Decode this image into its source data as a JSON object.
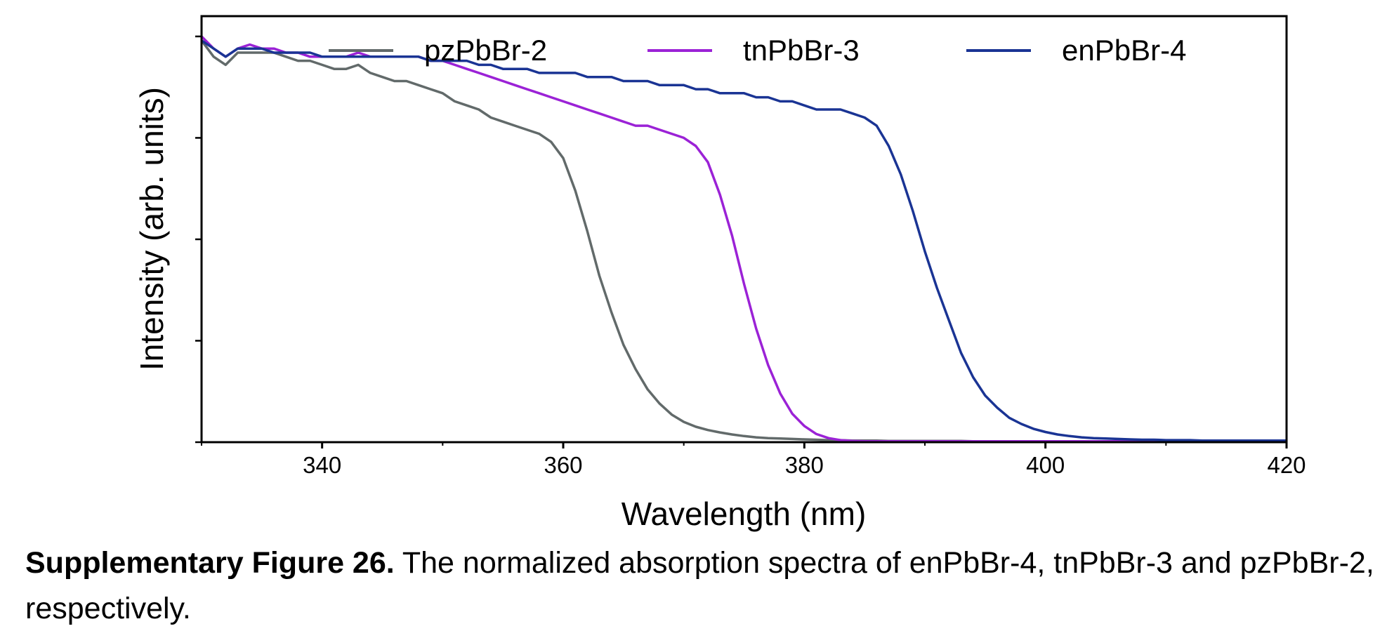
{
  "chart_data": {
    "type": "line",
    "xlabel": "Wavelength (nm)",
    "ylabel": "Intensity (arb. units)",
    "xlim": [
      330,
      420
    ],
    "ylim": [
      0,
      1.05
    ],
    "xticks": [
      340,
      360,
      380,
      400,
      420
    ],
    "y_tick_labels": "none",
    "grid": false,
    "legend_position": "top",
    "x": [
      330,
      331,
      332,
      333,
      334,
      335,
      336,
      337,
      338,
      339,
      340,
      341,
      342,
      343,
      344,
      345,
      346,
      347,
      348,
      349,
      350,
      351,
      352,
      353,
      354,
      355,
      356,
      357,
      358,
      359,
      360,
      361,
      362,
      363,
      364,
      365,
      366,
      367,
      368,
      369,
      370,
      371,
      372,
      373,
      374,
      375,
      376,
      377,
      378,
      379,
      380,
      381,
      382,
      383,
      384,
      385,
      386,
      387,
      388,
      389,
      390,
      391,
      392,
      393,
      394,
      395,
      396,
      397,
      398,
      399,
      400,
      401,
      402,
      403,
      404,
      405,
      406,
      407,
      408,
      409,
      410,
      411,
      412,
      413,
      414,
      415,
      416,
      417,
      418,
      419,
      420
    ],
    "series": [
      {
        "name": "pzPbBr-2",
        "color": "#626a6a",
        "values": [
          0.99,
          0.95,
          0.93,
          0.96,
          0.96,
          0.96,
          0.96,
          0.95,
          0.94,
          0.94,
          0.93,
          0.92,
          0.92,
          0.93,
          0.91,
          0.9,
          0.89,
          0.89,
          0.88,
          0.87,
          0.86,
          0.84,
          0.83,
          0.82,
          0.8,
          0.79,
          0.78,
          0.77,
          0.76,
          0.74,
          0.7,
          0.62,
          0.52,
          0.41,
          0.32,
          0.24,
          0.18,
          0.13,
          0.095,
          0.068,
          0.05,
          0.038,
          0.03,
          0.024,
          0.019,
          0.015,
          0.012,
          0.01,
          0.009,
          0.008,
          0.007,
          0.006,
          0.005,
          0.005,
          0.004,
          0.004,
          0.004,
          0.003,
          0.003,
          0.003,
          0.003,
          0.003,
          0.003,
          0.003,
          0.002,
          0.002,
          0.002,
          0.002,
          0.002,
          0.002,
          0.002,
          0.002,
          0.002,
          0.002,
          0.002,
          0.002,
          0.002,
          0.002,
          0.002,
          0.002,
          0.002,
          0.002,
          0.002,
          0.002,
          0.002,
          0.002,
          0.002,
          0.002,
          0.002,
          0.002,
          0.002
        ]
      },
      {
        "name": "tnPbBr-3",
        "color": "#9b22d6",
        "values": [
          1.0,
          0.97,
          0.95,
          0.97,
          0.98,
          0.97,
          0.97,
          0.96,
          0.96,
          0.95,
          0.95,
          0.95,
          0.95,
          0.96,
          0.95,
          0.95,
          0.95,
          0.95,
          0.95,
          0.94,
          0.94,
          0.93,
          0.92,
          0.91,
          0.9,
          0.89,
          0.88,
          0.87,
          0.86,
          0.85,
          0.84,
          0.83,
          0.82,
          0.81,
          0.8,
          0.79,
          0.78,
          0.78,
          0.77,
          0.76,
          0.75,
          0.73,
          0.69,
          0.61,
          0.51,
          0.39,
          0.28,
          0.19,
          0.12,
          0.07,
          0.04,
          0.02,
          0.01,
          0.005,
          0.003,
          0.002,
          0.002,
          0.002,
          0.002,
          0.002,
          0.002,
          0.002,
          0.002,
          0.002,
          0.002,
          0.002,
          0.002,
          0.002,
          0.002,
          0.002,
          0.002,
          0.002,
          0.002,
          0.002,
          0.002,
          0.002,
          0.002,
          0.002,
          0.002,
          0.002,
          0.002,
          0.002,
          0.002,
          0.002,
          0.002,
          0.002,
          0.002,
          0.002,
          0.002,
          0.002,
          0.002
        ]
      },
      {
        "name": "enPbBr-4",
        "color": "#1a3494",
        "values": [
          0.99,
          0.97,
          0.95,
          0.97,
          0.97,
          0.97,
          0.96,
          0.96,
          0.96,
          0.96,
          0.95,
          0.95,
          0.95,
          0.95,
          0.95,
          0.95,
          0.95,
          0.95,
          0.95,
          0.94,
          0.94,
          0.94,
          0.94,
          0.93,
          0.93,
          0.92,
          0.92,
          0.92,
          0.91,
          0.91,
          0.91,
          0.91,
          0.9,
          0.9,
          0.9,
          0.89,
          0.89,
          0.89,
          0.88,
          0.88,
          0.88,
          0.87,
          0.87,
          0.86,
          0.86,
          0.86,
          0.85,
          0.85,
          0.84,
          0.84,
          0.83,
          0.82,
          0.82,
          0.82,
          0.81,
          0.8,
          0.78,
          0.73,
          0.66,
          0.57,
          0.47,
          0.38,
          0.3,
          0.22,
          0.16,
          0.115,
          0.085,
          0.06,
          0.045,
          0.033,
          0.025,
          0.019,
          0.015,
          0.012,
          0.01,
          0.009,
          0.008,
          0.007,
          0.006,
          0.006,
          0.005,
          0.005,
          0.005,
          0.004,
          0.004,
          0.004,
          0.004,
          0.004,
          0.004,
          0.004,
          0.004
        ]
      }
    ]
  },
  "caption": {
    "bold": "Supplementary Figure 26.",
    "text": " The normalized absorption spectra of enPbBr-4, tnPbBr-3 and pzPbBr-2, respectively."
  }
}
